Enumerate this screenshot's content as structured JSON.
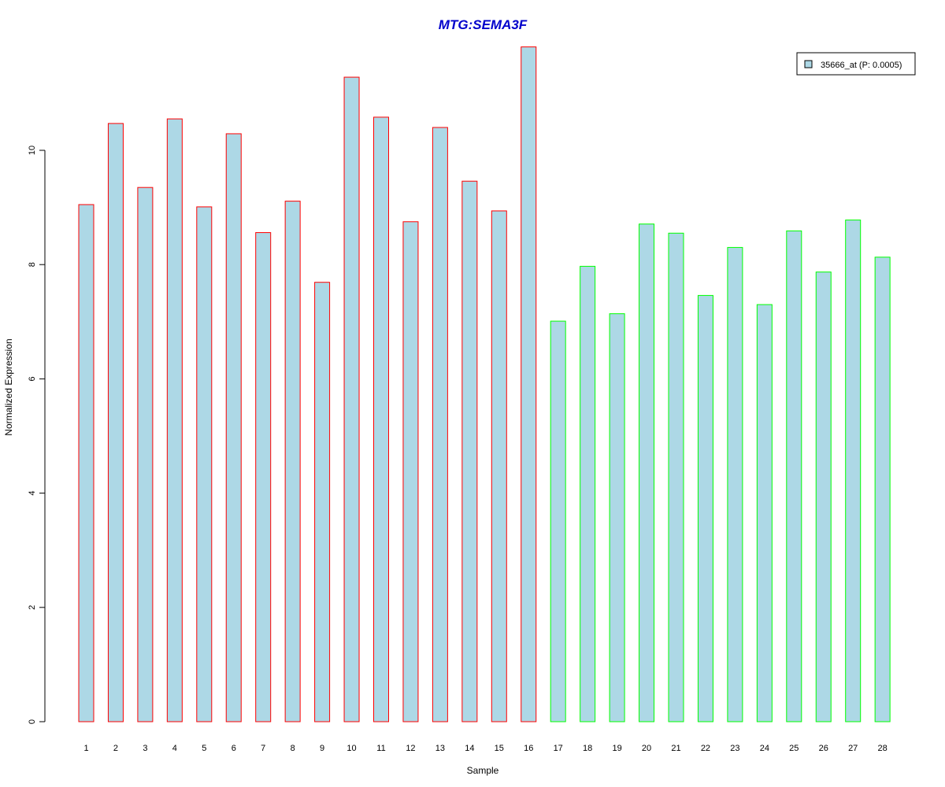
{
  "chart_data": {
    "type": "bar",
    "title": "MTG:SEMA3F",
    "xlabel": "Sample",
    "ylabel": "Normalized Expression",
    "ylim": [
      0,
      12
    ],
    "yticks": [
      0,
      2,
      4,
      6,
      8,
      10
    ],
    "grid": false,
    "legend_position": "top-right",
    "colors": {
      "title": "#0000cc",
      "bar_fill": "#add8e6",
      "group1_border": "#ff0000",
      "group2_border": "#00ff00"
    },
    "categories": [
      "1",
      "2",
      "3",
      "4",
      "5",
      "6",
      "7",
      "8",
      "9",
      "10",
      "11",
      "12",
      "13",
      "14",
      "15",
      "16",
      "17",
      "18",
      "19",
      "20",
      "21",
      "22",
      "23",
      "24",
      "25",
      "26",
      "27",
      "28"
    ],
    "series": [
      {
        "name": "35666_at (P: 0.0005)",
        "values": [
          9.05,
          10.47,
          9.35,
          10.55,
          9.01,
          10.29,
          8.56,
          9.11,
          7.69,
          11.28,
          10.58,
          8.75,
          10.4,
          9.46,
          8.94,
          11.81,
          7.01,
          7.97,
          7.14,
          8.71,
          8.55,
          7.46,
          8.3,
          7.3,
          8.59,
          7.87,
          8.78,
          8.13
        ]
      }
    ],
    "groups": [
      {
        "border_color": "#ff0000",
        "from": 1,
        "to": 16
      },
      {
        "border_color": "#00ff00",
        "from": 17,
        "to": 28
      }
    ]
  }
}
